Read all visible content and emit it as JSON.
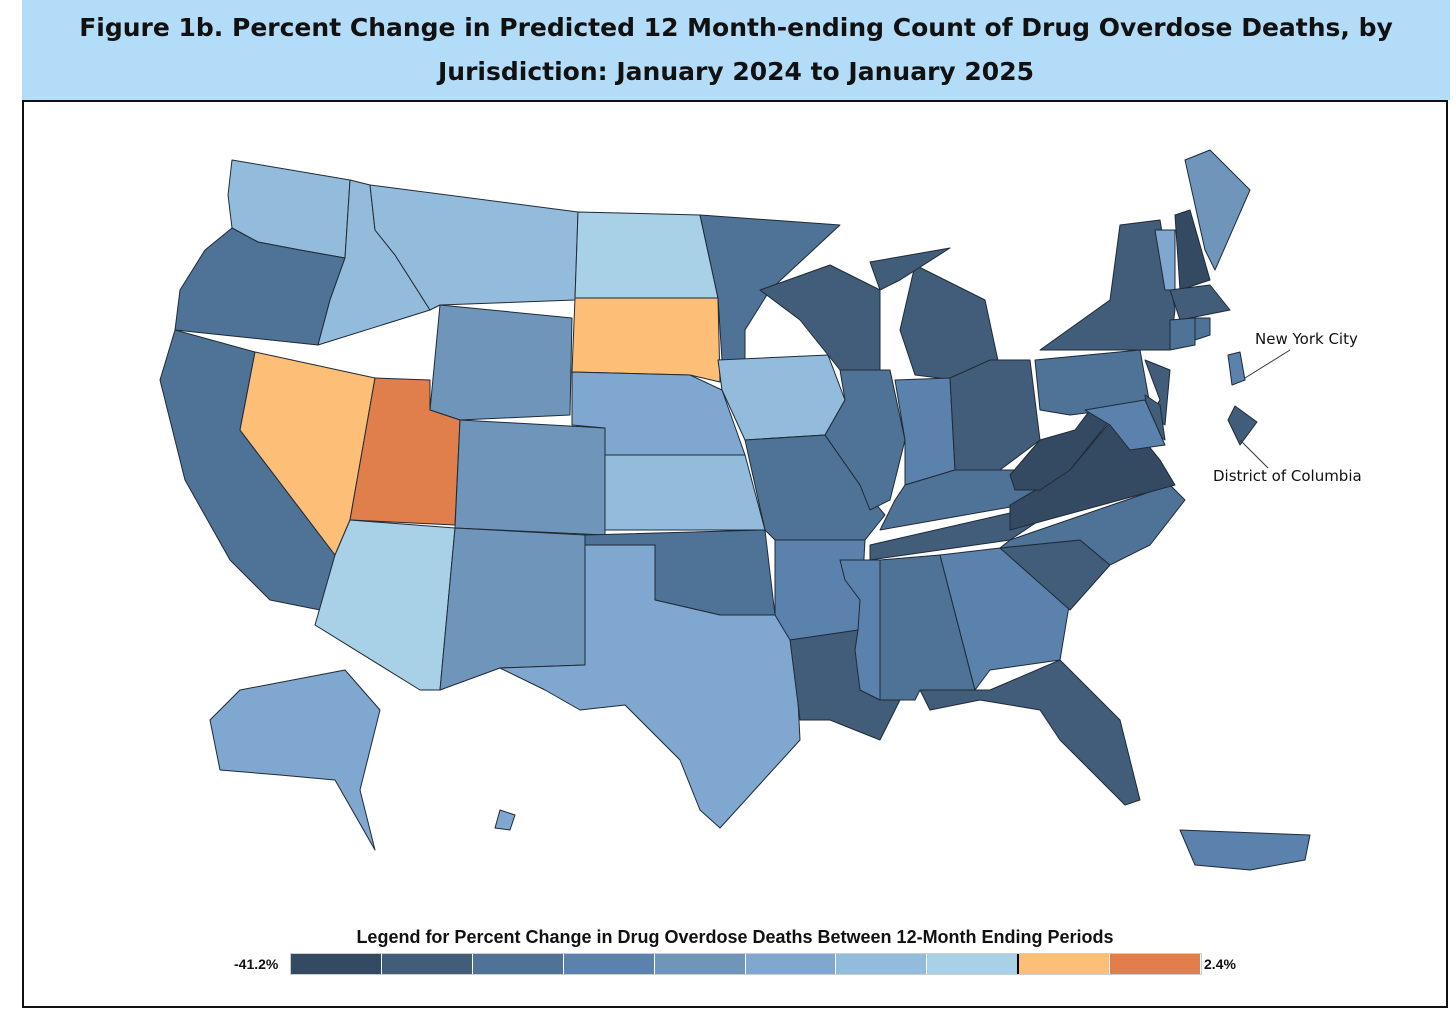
{
  "title": "Figure 1b. Percent Change in Predicted 12 Month-ending Count of Drug Overdose Deaths, by Jurisdiction: January 2024 to January 2025",
  "annotations": {
    "nyc": "New York City",
    "dc": "District of Columbia"
  },
  "legend": {
    "title": "Legend for Percent Change in Drug Overdose Deaths Between 12-Month Ending Periods",
    "min_label": "-41.2%",
    "max_label": "2.4%",
    "colors": [
      "#344a62",
      "#415d7a",
      "#4f7297",
      "#5b81ad",
      "#6f95bb",
      "#7fa7cf",
      "#93bcdc",
      "#a8d0e6",
      "#fdbe77",
      "#e07e4c"
    ],
    "zero_break_after_bin": 7
  },
  "jurisdiction_bins": {
    "WA": 6,
    "OR": 2,
    "CA": 2,
    "NV": 8,
    "ID": 6,
    "MT": 6,
    "WY": 4,
    "UT": 9,
    "AZ": 7,
    "CO": 4,
    "NM": 4,
    "ND": 7,
    "SD": 8,
    "NE": 5,
    "KS": 6,
    "OK": 2,
    "TX": 5,
    "MN": 2,
    "IA": 6,
    "MO": 2,
    "AR": 3,
    "LA": 1,
    "WI": 1,
    "IL": 2,
    "MS": 3,
    "MI": 1,
    "IN": 3,
    "KY": 2,
    "TN": 1,
    "AL": 2,
    "GA": 3,
    "FL": 1,
    "OH": 1,
    "WV": 0,
    "VA": 0,
    "NC": 2,
    "SC": 1,
    "PA": 2,
    "NY": 1,
    "VT": 5,
    "NH": 0,
    "ME": 4,
    "MA": 1,
    "CT": 2,
    "RI": 2,
    "NJ": 1,
    "DE": 1,
    "MD": 3,
    "AK": 5,
    "HI": 5,
    "PR": 3,
    "NYC": 3,
    "DC": 1
  }
}
